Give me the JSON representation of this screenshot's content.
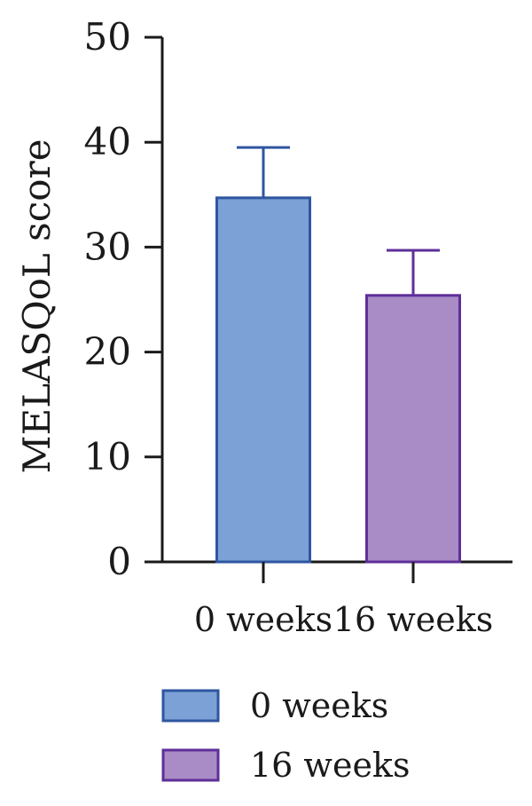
{
  "chart_data": {
    "type": "bar",
    "title": "",
    "xlabel": "",
    "ylabel": "MELASQoL score",
    "ylim": [
      0,
      50
    ],
    "yticks": [
      0,
      10,
      20,
      30,
      40,
      50
    ],
    "categories": [
      "0 weeks",
      "16 weeks"
    ],
    "values": [
      34.7,
      25.4
    ],
    "error_upper": [
      39.5,
      29.7
    ],
    "colors": {
      "0 weeks": {
        "fill": "#7ba1d6",
        "stroke": "#2f56a0"
      },
      "16 weeks": {
        "fill": "#a98bc6",
        "stroke": "#5e2f99"
      }
    },
    "axis_color": "#1a1a1a",
    "grid": false,
    "legend": {
      "placement": "bottom-left",
      "entries": [
        "0 weeks",
        "16 weeks"
      ]
    }
  }
}
